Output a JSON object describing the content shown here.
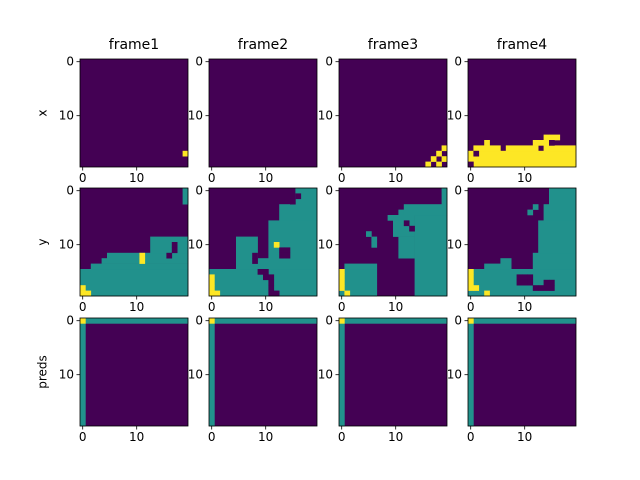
{
  "chart_data": {
    "type": "heatmap",
    "grid_size": [
      20,
      20
    ],
    "colormap": "viridis",
    "palette": {
      "0": "#440154",
      "1": "#21918c",
      "2": "#fde725"
    },
    "columns": [
      "frame1",
      "frame2",
      "frame3",
      "frame4"
    ],
    "rows": [
      "x",
      "y",
      "preds"
    ],
    "ticks": [
      0,
      10
    ],
    "x_tick_labels": [
      "0",
      "10"
    ],
    "y_tick_labels": [
      "0",
      "10"
    ],
    "panels": [
      {
        "row": "x",
        "col": "frame1",
        "background": 0,
        "cells": [
          [
            19,
            17,
            2
          ]
        ]
      },
      {
        "row": "x",
        "col": "frame2",
        "background": 0,
        "cells": []
      },
      {
        "row": "x",
        "col": "frame3",
        "background": 0,
        "cells": [
          [
            16,
            19,
            2
          ],
          [
            17,
            18,
            2
          ],
          [
            18,
            17,
            2
          ],
          [
            18,
            19,
            2
          ],
          [
            19,
            16,
            2
          ],
          [
            19,
            18,
            2
          ]
        ]
      },
      {
        "row": "x",
        "col": "frame4",
        "background": 0,
        "rects": [
          [
            0,
            17,
            20,
            3,
            2
          ],
          [
            1,
            16,
            5,
            1,
            2
          ],
          [
            7,
            16,
            6,
            1,
            2
          ],
          [
            14,
            16,
            6,
            1,
            2
          ],
          [
            3,
            15,
            1,
            1,
            2
          ],
          [
            12,
            15,
            3,
            1,
            2
          ],
          [
            14,
            14,
            1,
            1,
            2
          ],
          [
            15,
            14,
            2,
            1,
            2
          ]
        ],
        "cells": [
          [
            1,
            17,
            0
          ],
          [
            0,
            19,
            0
          ],
          [
            15,
            15,
            0
          ]
        ]
      },
      {
        "row": "y",
        "col": "frame1",
        "background": 0,
        "rects": [
          [
            0,
            15,
            20,
            5,
            1
          ],
          [
            2,
            14,
            18,
            1,
            1
          ],
          [
            4,
            13,
            16,
            1,
            1
          ],
          [
            5,
            12,
            15,
            1,
            1
          ],
          [
            13,
            9,
            7,
            3,
            1
          ],
          [
            19,
            0,
            1,
            3,
            1
          ]
        ],
        "cells": [
          [
            0,
            18,
            2
          ],
          [
            0,
            19,
            2
          ],
          [
            1,
            19,
            2
          ],
          [
            11,
            12,
            2
          ],
          [
            11,
            13,
            2
          ],
          [
            16,
            12,
            0
          ],
          [
            17,
            10,
            0
          ],
          [
            17,
            11,
            0
          ]
        ]
      },
      {
        "row": "y",
        "col": "frame2",
        "background": 0,
        "rects": [
          [
            0,
            15,
            20,
            5,
            1
          ],
          [
            5,
            13,
            15,
            2,
            1
          ],
          [
            5,
            9,
            4,
            4,
            1
          ],
          [
            11,
            6,
            9,
            7,
            1
          ],
          [
            13,
            3,
            7,
            3,
            1
          ],
          [
            16,
            0,
            4,
            3,
            1
          ]
        ],
        "cells": [
          [
            0,
            16,
            2
          ],
          [
            0,
            17,
            2
          ],
          [
            0,
            18,
            2
          ],
          [
            0,
            19,
            2
          ],
          [
            1,
            19,
            2
          ],
          [
            12,
            10,
            2
          ],
          [
            8,
            12,
            0
          ],
          [
            8,
            13,
            0
          ],
          [
            9,
            15,
            0
          ],
          [
            10,
            15,
            0
          ],
          [
            10,
            16,
            0
          ],
          [
            11,
            16,
            0
          ],
          [
            11,
            17,
            0
          ],
          [
            11,
            18,
            0
          ],
          [
            11,
            19,
            0
          ],
          [
            12,
            19,
            0
          ],
          [
            13,
            11,
            0
          ],
          [
            14,
            11,
            0
          ],
          [
            13,
            12,
            0
          ],
          [
            14,
            12,
            0
          ],
          [
            15,
            2,
            0
          ],
          [
            16,
            1,
            0
          ]
        ]
      },
      {
        "row": "y",
        "col": "frame3",
        "background": 0,
        "rects": [
          [
            0,
            15,
            7,
            5,
            1
          ],
          [
            1,
            14,
            6,
            1,
            1
          ],
          [
            14,
            5,
            6,
            15,
            1
          ],
          [
            11,
            4,
            8,
            1,
            1
          ],
          [
            12,
            3,
            8,
            2,
            1
          ],
          [
            9,
            5,
            5,
            1,
            1
          ],
          [
            10,
            6,
            4,
            3,
            1
          ],
          [
            11,
            9,
            3,
            4,
            1
          ],
          [
            19,
            0,
            1,
            3,
            1
          ]
        ],
        "cells": [
          [
            0,
            15,
            2
          ],
          [
            0,
            16,
            2
          ],
          [
            0,
            17,
            2
          ],
          [
            0,
            18,
            2
          ],
          [
            1,
            19,
            2
          ],
          [
            5,
            8,
            1
          ],
          [
            6,
            9,
            1
          ],
          [
            6,
            10,
            1
          ],
          [
            12,
            6,
            0
          ],
          [
            13,
            7,
            0
          ]
        ]
      },
      {
        "row": "y",
        "col": "frame4",
        "background": 0,
        "rects": [
          [
            0,
            15,
            20,
            5,
            1
          ],
          [
            3,
            14,
            4,
            1,
            1
          ],
          [
            6,
            13,
            2,
            2,
            1
          ],
          [
            12,
            12,
            8,
            3,
            1
          ],
          [
            13,
            6,
            7,
            6,
            1
          ],
          [
            14,
            3,
            6,
            3,
            1
          ],
          [
            15,
            0,
            5,
            3,
            1
          ]
        ],
        "cells": [
          [
            0,
            15,
            2
          ],
          [
            0,
            16,
            2
          ],
          [
            0,
            17,
            2
          ],
          [
            0,
            18,
            2
          ],
          [
            1,
            18,
            2
          ],
          [
            3,
            19,
            2
          ],
          [
            11,
            4,
            1
          ],
          [
            12,
            3,
            1
          ],
          [
            9,
            16,
            0
          ],
          [
            10,
            16,
            0
          ],
          [
            11,
            16,
            0
          ],
          [
            9,
            17,
            0
          ],
          [
            10,
            17,
            0
          ],
          [
            11,
            17,
            0
          ],
          [
            12,
            18,
            0
          ],
          [
            13,
            18,
            0
          ],
          [
            14,
            18,
            0
          ],
          [
            15,
            18,
            0
          ],
          [
            14,
            17,
            0
          ],
          [
            15,
            17,
            0
          ]
        ]
      },
      {
        "row": "preds",
        "col": "frame1",
        "background": 0,
        "rects": [
          [
            0,
            0,
            20,
            1,
            1
          ],
          [
            0,
            1,
            1,
            19,
            1
          ]
        ],
        "cells": [
          [
            0,
            0,
            2
          ]
        ]
      },
      {
        "row": "preds",
        "col": "frame2",
        "background": 0,
        "rects": [
          [
            0,
            0,
            20,
            1,
            1
          ],
          [
            0,
            1,
            1,
            19,
            1
          ]
        ],
        "cells": [
          [
            0,
            0,
            2
          ]
        ]
      },
      {
        "row": "preds",
        "col": "frame3",
        "background": 0,
        "rects": [
          [
            0,
            0,
            20,
            1,
            1
          ],
          [
            0,
            1,
            1,
            19,
            1
          ]
        ],
        "cells": [
          [
            0,
            0,
            2
          ]
        ]
      },
      {
        "row": "preds",
        "col": "frame4",
        "background": 0,
        "rects": [
          [
            0,
            0,
            20,
            1,
            1
          ],
          [
            0,
            1,
            1,
            19,
            1
          ]
        ],
        "cells": [
          [
            0,
            0,
            2
          ]
        ]
      }
    ]
  }
}
